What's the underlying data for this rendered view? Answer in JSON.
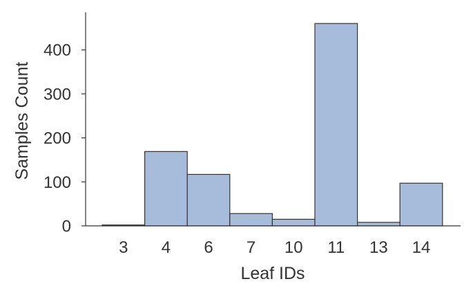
{
  "chart_data": {
    "type": "bar",
    "categories": [
      "3",
      "4",
      "6",
      "7",
      "10",
      "11",
      "13",
      "14"
    ],
    "values": [
      2,
      169,
      117,
      28,
      15,
      460,
      8,
      97
    ],
    "title": "",
    "xlabel": "Leaf IDs",
    "ylabel": "Samples Count",
    "ylim": [
      0,
      460
    ],
    "yticks": [
      0,
      100,
      200,
      300,
      400
    ],
    "grid": false,
    "bar_color": "#a7bcda",
    "bar_edge_color": "#333333"
  }
}
